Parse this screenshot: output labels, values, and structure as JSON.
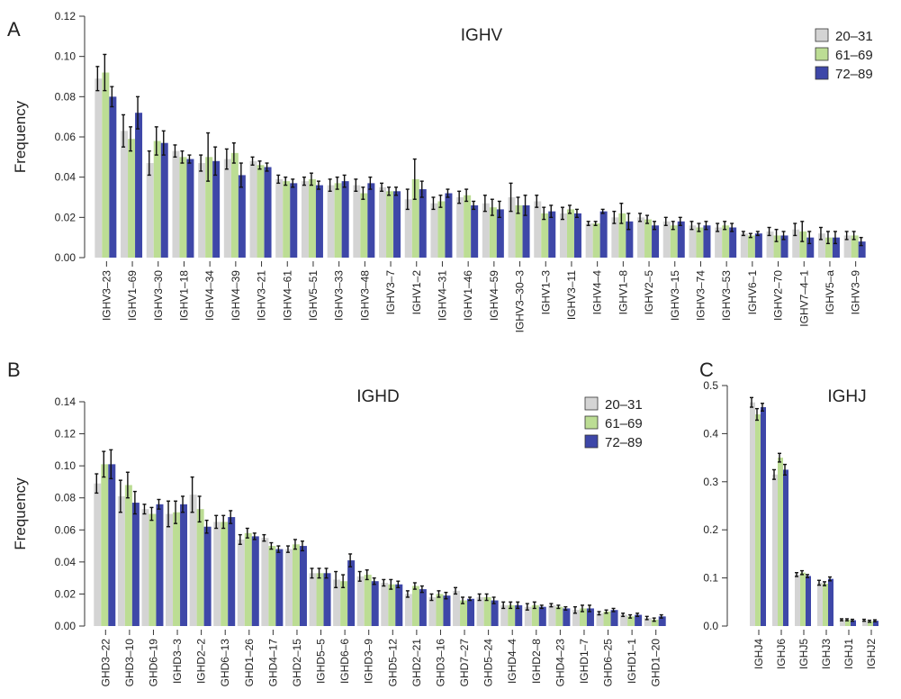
{
  "colors": {
    "20-31": "#d4d4d4",
    "61-69": "#bcdd94",
    "72-89": "#3e47a8",
    "error_bar": "#111111",
    "axis": "#333333"
  },
  "chart_data": [
    {
      "id": "A",
      "panel_letter": "A",
      "type": "bar",
      "title": "IGHV",
      "xlabel": "",
      "ylabel": "Frequency",
      "ylim": [
        0,
        0.12
      ],
      "yticks": [
        "0.00",
        "0.02",
        "0.04",
        "0.06",
        "0.08",
        "0.10",
        "0.12"
      ],
      "legend": {
        "position": "top-right",
        "entries": [
          "20–31",
          "61–69",
          "72–89"
        ]
      },
      "categories": [
        "IGHV3–23",
        "IGHV1–69",
        "IGHV3–30",
        "IGHV1–18",
        "IGHV4–34",
        "IGHV4–39",
        "IGHV3–21",
        "IGHV4–61",
        "IGHV5–51",
        "IGHV3–33",
        "IGHV3–48",
        "IGHV3–7",
        "IGHV1–2",
        "IGHV4–31",
        "IGHV1–46",
        "IGHV4–59",
        "IGHV3–30–3",
        "IGHV1–3",
        "IGHV3–11",
        "IGHV4–4",
        "IGHV1–8",
        "IGHV2–5",
        "IGHV3–15",
        "IGHV3–74",
        "IGHV3–53",
        "IGHV6–1",
        "IGHV2–70",
        "IGHV7–4–1",
        "IGHV5–a",
        "IGHV3–9"
      ],
      "series": [
        {
          "name": "20–31",
          "values": [
            0.089,
            0.063,
            0.047,
            0.053,
            0.047,
            0.049,
            0.048,
            0.039,
            0.038,
            0.036,
            0.036,
            0.035,
            0.029,
            0.027,
            0.03,
            0.027,
            0.03,
            0.028,
            0.022,
            0.017,
            0.02,
            0.02,
            0.018,
            0.016,
            0.015,
            0.012,
            0.013,
            0.014,
            0.012,
            0.011
          ],
          "errors": [
            0.006,
            0.008,
            0.006,
            0.003,
            0.004,
            0.005,
            0.002,
            0.002,
            0.002,
            0.003,
            0.003,
            0.002,
            0.005,
            0.003,
            0.003,
            0.004,
            0.007,
            0.003,
            0.003,
            0.001,
            0.003,
            0.002,
            0.002,
            0.002,
            0.002,
            0.001,
            0.002,
            0.003,
            0.003,
            0.002
          ]
        },
        {
          "name": "61–69",
          "values": [
            0.092,
            0.059,
            0.058,
            0.05,
            0.05,
            0.052,
            0.046,
            0.038,
            0.039,
            0.037,
            0.032,
            0.033,
            0.039,
            0.028,
            0.031,
            0.025,
            0.026,
            0.022,
            0.024,
            0.017,
            0.022,
            0.019,
            0.016,
            0.015,
            0.016,
            0.011,
            0.011,
            0.013,
            0.01,
            0.011
          ],
          "errors": [
            0.009,
            0.006,
            0.007,
            0.003,
            0.012,
            0.005,
            0.002,
            0.002,
            0.003,
            0.003,
            0.003,
            0.002,
            0.01,
            0.003,
            0.003,
            0.004,
            0.004,
            0.003,
            0.002,
            0.001,
            0.005,
            0.002,
            0.002,
            0.002,
            0.002,
            0.001,
            0.003,
            0.005,
            0.003,
            0.002
          ]
        },
        {
          "name": "72–89",
          "values": [
            0.08,
            0.072,
            0.057,
            0.049,
            0.048,
            0.041,
            0.045,
            0.037,
            0.036,
            0.038,
            0.037,
            0.033,
            0.034,
            0.032,
            0.026,
            0.024,
            0.026,
            0.023,
            0.022,
            0.023,
            0.018,
            0.016,
            0.018,
            0.016,
            0.015,
            0.012,
            0.011,
            0.01,
            0.01,
            0.008
          ],
          "errors": [
            0.005,
            0.008,
            0.006,
            0.002,
            0.007,
            0.006,
            0.002,
            0.002,
            0.002,
            0.003,
            0.003,
            0.002,
            0.004,
            0.002,
            0.002,
            0.004,
            0.005,
            0.003,
            0.002,
            0.001,
            0.004,
            0.002,
            0.002,
            0.002,
            0.002,
            0.001,
            0.002,
            0.003,
            0.003,
            0.002
          ]
        }
      ]
    },
    {
      "id": "B",
      "panel_letter": "B",
      "type": "bar",
      "title": "IGHD",
      "xlabel": "",
      "ylabel": "Frequency",
      "ylim": [
        0,
        0.14
      ],
      "yticks": [
        "0.00",
        "0.02",
        "0.04",
        "0.06",
        "0.08",
        "0.10",
        "0.12",
        "0.14"
      ],
      "legend": {
        "position": "top-right",
        "entries": [
          "20–31",
          "61–69",
          "72–89"
        ]
      },
      "categories": [
        "GHD3–22",
        "GHD3–10",
        "GHD6–19",
        "IGHD3–3",
        "IGHD2–2",
        "GHD6–13",
        "GHD1–26",
        "GHD4–17",
        "GHD2–15",
        "IGHD5–5",
        "IGHD6–6",
        "IGHD3–9",
        "GHD5–12",
        "GHD2–21",
        "GHD3–16",
        "GHD7–27",
        "GHD5–24",
        "IGHD4–4",
        "IGHD2–8",
        "GHD4–23",
        "IGHD1–7",
        "GHD6–25",
        "IGHD1–1",
        "GHD1–20"
      ],
      "series": [
        {
          "name": "20–31",
          "values": [
            0.089,
            0.081,
            0.073,
            0.07,
            0.082,
            0.065,
            0.054,
            0.055,
            0.048,
            0.033,
            0.029,
            0.031,
            0.027,
            0.02,
            0.018,
            0.022,
            0.018,
            0.013,
            0.012,
            0.013,
            0.01,
            0.008,
            0.007,
            0.005
          ],
          "errors": [
            0.006,
            0.01,
            0.003,
            0.008,
            0.011,
            0.004,
            0.003,
            0.002,
            0.002,
            0.003,
            0.005,
            0.003,
            0.002,
            0.002,
            0.002,
            0.002,
            0.002,
            0.002,
            0.002,
            0.001,
            0.002,
            0.001,
            0.001,
            0.001
          ],
          "name_display": "20–31"
        },
        {
          "name": "61–69",
          "values": [
            0.101,
            0.088,
            0.07,
            0.071,
            0.073,
            0.065,
            0.058,
            0.05,
            0.051,
            0.033,
            0.028,
            0.032,
            0.026,
            0.025,
            0.02,
            0.016,
            0.018,
            0.013,
            0.013,
            0.012,
            0.011,
            0.009,
            0.006,
            0.004
          ],
          "errors": [
            0.008,
            0.008,
            0.004,
            0.007,
            0.008,
            0.004,
            0.003,
            0.002,
            0.003,
            0.003,
            0.004,
            0.003,
            0.003,
            0.002,
            0.002,
            0.002,
            0.002,
            0.002,
            0.002,
            0.001,
            0.002,
            0.001,
            0.001,
            0.001
          ]
        },
        {
          "name": "72–89",
          "values": [
            0.101,
            0.077,
            0.076,
            0.076,
            0.062,
            0.068,
            0.056,
            0.048,
            0.05,
            0.033,
            0.041,
            0.028,
            0.026,
            0.023,
            0.019,
            0.017,
            0.016,
            0.013,
            0.012,
            0.011,
            0.011,
            0.01,
            0.007,
            0.006
          ],
          "errors": [
            0.009,
            0.007,
            0.003,
            0.005,
            0.004,
            0.004,
            0.002,
            0.002,
            0.003,
            0.003,
            0.004,
            0.002,
            0.002,
            0.002,
            0.002,
            0.001,
            0.002,
            0.002,
            0.001,
            0.001,
            0.002,
            0.001,
            0.001,
            0.001
          ]
        }
      ]
    },
    {
      "id": "C",
      "panel_letter": "C",
      "type": "bar",
      "title": "IGHJ",
      "xlabel": "",
      "ylabel": "",
      "ylim": [
        0,
        0.5
      ],
      "yticks": [
        "0.0",
        "0.1",
        "0.2",
        "0.3",
        "0.4",
        "0.5"
      ],
      "categories": [
        "IGHJ4",
        "IGHJ6",
        "IGHJ5",
        "IGHJ3",
        "IGHJ1",
        "IGHJ2"
      ],
      "series": [
        {
          "name": "20–31",
          "values": [
            0.465,
            0.315,
            0.107,
            0.09,
            0.013,
            0.012
          ],
          "errors": [
            0.01,
            0.01,
            0.004,
            0.005,
            0.002,
            0.002
          ]
        },
        {
          "name": "61–69",
          "values": [
            0.44,
            0.35,
            0.111,
            0.088,
            0.013,
            0.01
          ],
          "errors": [
            0.012,
            0.009,
            0.004,
            0.004,
            0.002,
            0.002
          ]
        },
        {
          "name": "72–89",
          "values": [
            0.455,
            0.325,
            0.104,
            0.098,
            0.012,
            0.011
          ],
          "errors": [
            0.008,
            0.011,
            0.003,
            0.004,
            0.002,
            0.002
          ]
        }
      ]
    }
  ]
}
